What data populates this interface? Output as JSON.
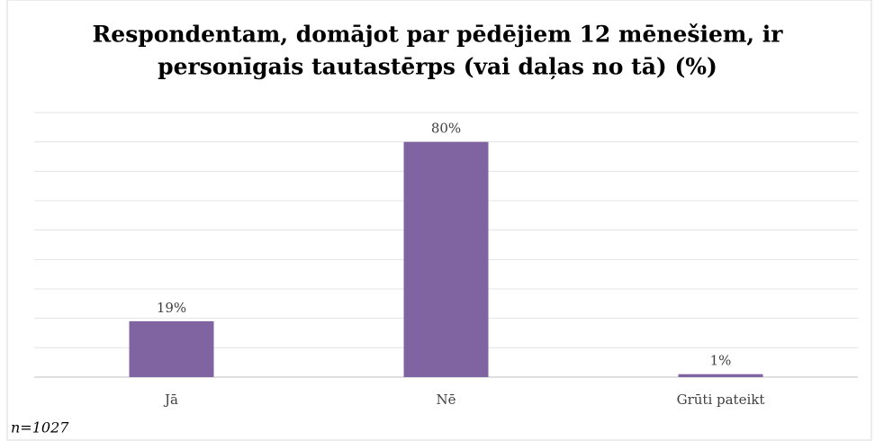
{
  "chart_data": {
    "type": "bar",
    "title": [
      "Respondentam, domājot par pēdējiem 12 mēnešiem, ir",
      "personīgais tautastērps (vai daļas no tā) (%)"
    ],
    "categories": [
      "Jā",
      "Nē",
      "Grūti pateikt"
    ],
    "values": [
      19,
      80,
      1
    ],
    "value_labels": [
      "19%",
      "80%",
      "1%"
    ],
    "color": "#8064a2",
    "ylim": [
      0,
      90
    ],
    "yticks": [
      0,
      10,
      20,
      30,
      40,
      50,
      60,
      70,
      80,
      90
    ],
    "grid": true,
    "note": "n=1027"
  }
}
